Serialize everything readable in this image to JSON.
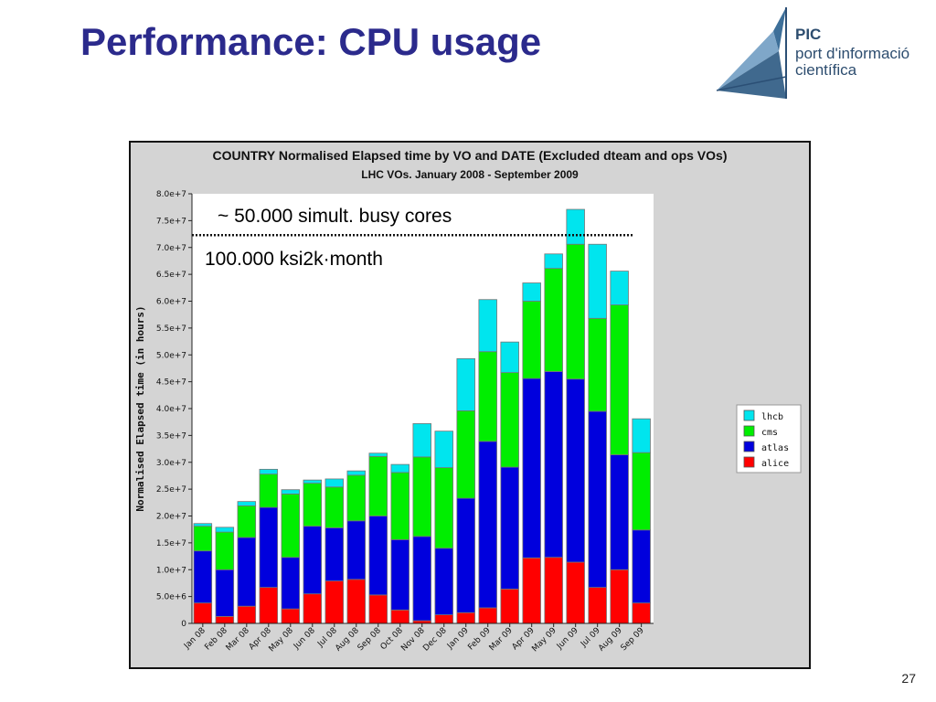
{
  "slide": {
    "title": "Performance: CPU usage",
    "page_number": "27",
    "logo": {
      "name": "PIC",
      "line1": "port d'informació",
      "line2": "científica"
    }
  },
  "chart_data": {
    "type": "bar",
    "stacked": true,
    "title": "COUNTRY Normalised Elapsed time by VO and DATE (Excluded dteam and ops VOs)",
    "subtitle": "LHC VOs. January 2008 - September 2009",
    "ylabel": "Normalised Elapsed time (in hours)",
    "xlabel": "",
    "ylim": [
      0,
      80000000
    ],
    "yticks": [
      {
        "v": 0,
        "label": "0"
      },
      {
        "v": 5000000,
        "label": "5.0e+6"
      },
      {
        "v": 10000000,
        "label": "1.0e+7"
      },
      {
        "v": 15000000,
        "label": "1.5e+7"
      },
      {
        "v": 20000000,
        "label": "2.0e+7"
      },
      {
        "v": 25000000,
        "label": "2.5e+7"
      },
      {
        "v": 30000000,
        "label": "3.0e+7"
      },
      {
        "v": 35000000,
        "label": "3.5e+7"
      },
      {
        "v": 40000000,
        "label": "4.0e+7"
      },
      {
        "v": 45000000,
        "label": "4.5e+7"
      },
      {
        "v": 50000000,
        "label": "5.0e+7"
      },
      {
        "v": 55000000,
        "label": "5.5e+7"
      },
      {
        "v": 60000000,
        "label": "6.0e+7"
      },
      {
        "v": 65000000,
        "label": "6.5e+7"
      },
      {
        "v": 70000000,
        "label": "7.0e+7"
      },
      {
        "v": 75000000,
        "label": "7.5e+7"
      },
      {
        "v": 80000000,
        "label": "8.0e+7"
      }
    ],
    "categories": [
      "Jan 08",
      "Feb 08",
      "Mar 08",
      "Apr 08",
      "May 08",
      "Jun 08",
      "Jul 08",
      "Aug 08",
      "Sep 08",
      "Oct 08",
      "Nov 08",
      "Dec 08",
      "Jan 09",
      "Feb 09",
      "Mar 09",
      "Apr 09",
      "May 09",
      "Jun 09",
      "Jul 09",
      "Aug 09",
      "Sep 09"
    ],
    "series": [
      {
        "name": "alice",
        "color": "#ff0000",
        "values": [
          3800000,
          1300000,
          3200000,
          6700000,
          2700000,
          5500000,
          7900000,
          8200000,
          5300000,
          2500000,
          500000,
          1600000,
          2000000,
          2900000,
          6400000,
          12200000,
          12300000,
          11400000,
          6700000,
          10000000,
          3800000
        ]
      },
      {
        "name": "atlas",
        "color": "#0000dd",
        "values": [
          9700000,
          8700000,
          12800000,
          14900000,
          9600000,
          12600000,
          9900000,
          10900000,
          14700000,
          13100000,
          15700000,
          12400000,
          21300000,
          31000000,
          22700000,
          33400000,
          34600000,
          34100000,
          32800000,
          21400000,
          13600000
        ]
      },
      {
        "name": "cms",
        "color": "#00ee00",
        "values": [
          4600000,
          7000000,
          5900000,
          6200000,
          11800000,
          8000000,
          7600000,
          8500000,
          11100000,
          12500000,
          14800000,
          15000000,
          16300000,
          16700000,
          17600000,
          14400000,
          19200000,
          25100000,
          17300000,
          27900000,
          14400000
        ]
      },
      {
        "name": "lhcb",
        "color": "#00e5ee",
        "values": [
          500000,
          900000,
          800000,
          900000,
          800000,
          600000,
          1500000,
          800000,
          600000,
          1500000,
          6200000,
          6800000,
          9700000,
          9700000,
          5700000,
          3400000,
          2700000,
          6500000,
          13800000,
          6300000,
          6300000
        ]
      }
    ],
    "legend": {
      "placement": "right",
      "order": [
        "lhcb",
        "cms",
        "atlas",
        "alice"
      ]
    },
    "grid": false,
    "annotations": [
      {
        "text": "~ 50.000 simult. busy cores"
      },
      {
        "text": "100.000 ksi2k·month"
      }
    ],
    "reference_line": {
      "y": 72300000,
      "style": "dotted"
    }
  }
}
